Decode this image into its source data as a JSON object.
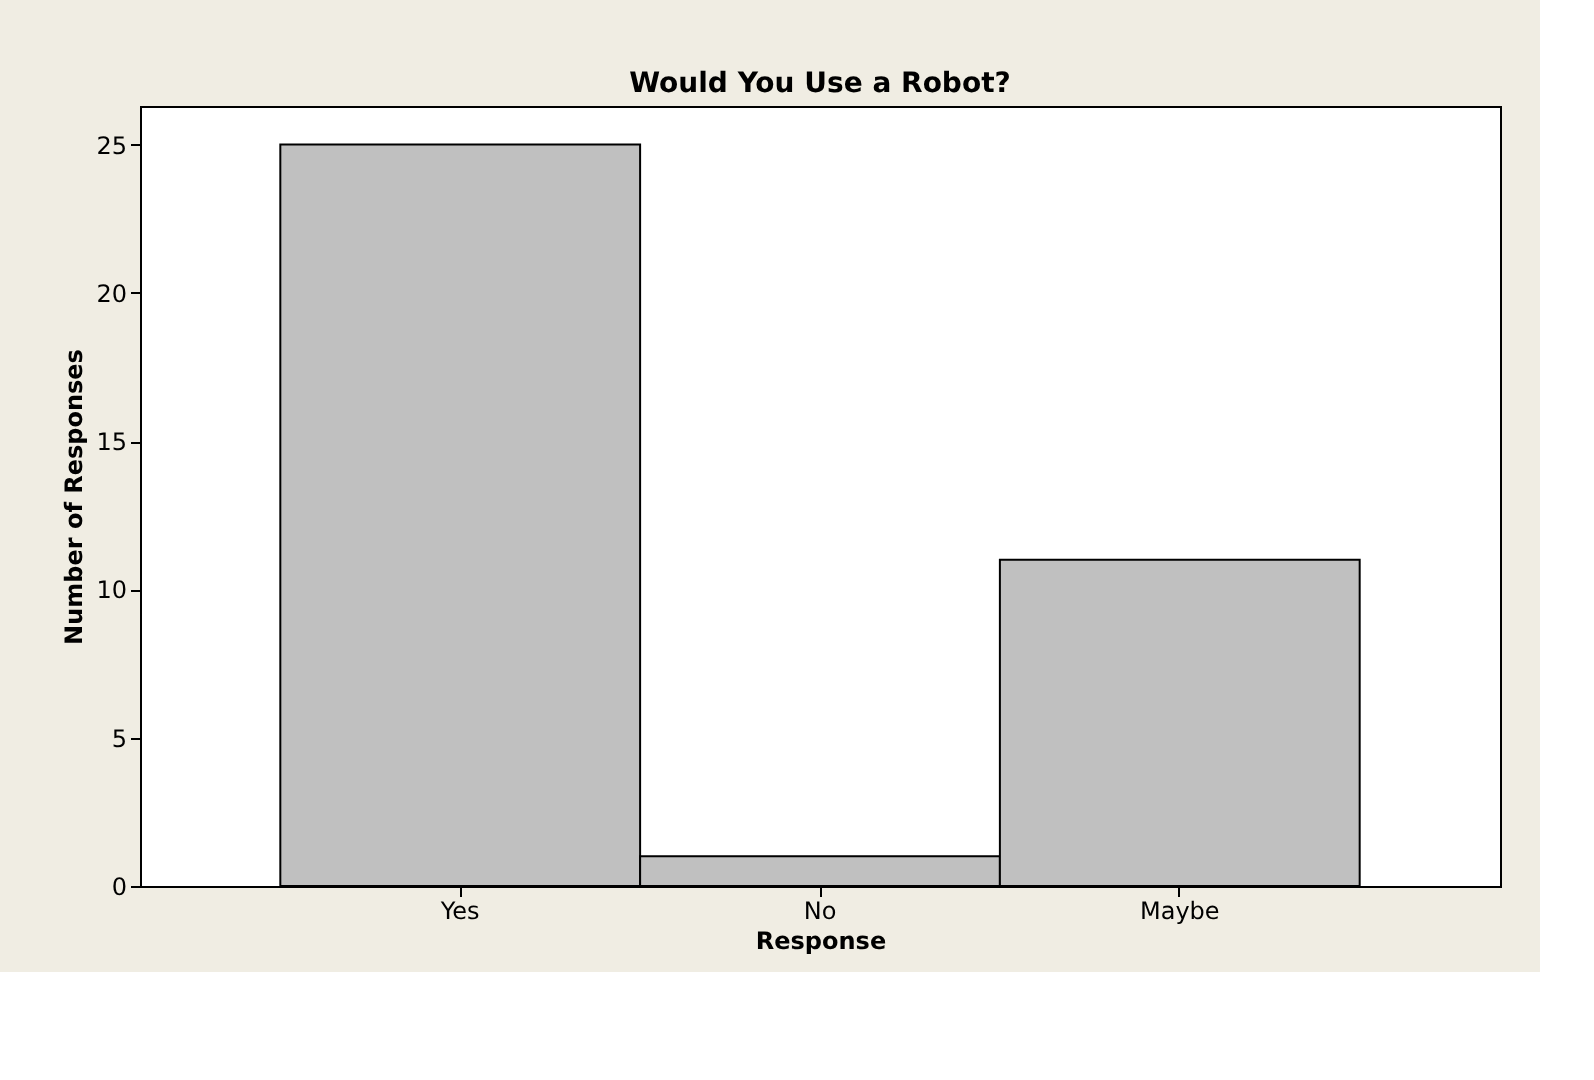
{
  "chart_data": {
    "type": "bar",
    "title": "Would You Use a Robot?",
    "xlabel": "Response",
    "ylabel": "Number of Responses",
    "categories": [
      "Yes",
      "No",
      "Maybe"
    ],
    "values": [
      25,
      1,
      11
    ],
    "color": "#c0c0c0",
    "ylim": [
      0,
      26.3
    ],
    "yticks": [
      0,
      5,
      10,
      15,
      20,
      25
    ],
    "grid": false
  }
}
